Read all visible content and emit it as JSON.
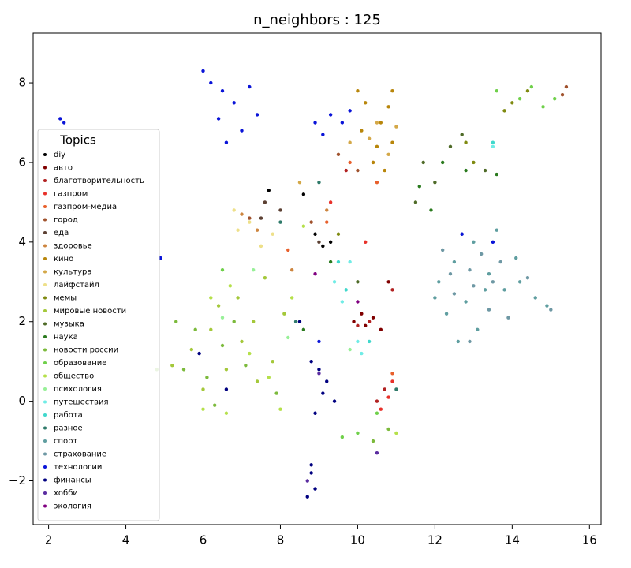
{
  "chart_data": {
    "type": "scatter",
    "title": "n_neighbors : 125",
    "legend_title": "Topics",
    "legend": "lower left",
    "xlim": [
      1.6,
      16.3
    ],
    "ylim": [
      -3.1,
      9.25
    ],
    "xticks": [
      2,
      4,
      6,
      8,
      10,
      12,
      14,
      16
    ],
    "yticks": [
      {
        "value": -2,
        "label": "−2"
      },
      0,
      2,
      4,
      6,
      8
    ],
    "series": [
      {
        "name": "diy",
        "color": "#000000",
        "x": [
          8.9,
          9.1,
          8.6,
          9.3,
          7.7
        ],
        "values": [
          4.2,
          3.9,
          5.2,
          4.0,
          5.3
        ]
      },
      {
        "name": "авто",
        "color": "#800000",
        "x": [
          10.2,
          10.4,
          9.9,
          10.1,
          10.6,
          10.8
        ],
        "values": [
          1.9,
          2.1,
          2.0,
          2.2,
          1.8,
          3.0
        ]
      },
      {
        "name": "благотворительность",
        "color": "#b22222",
        "x": [
          10.0,
          10.3,
          10.5,
          10.7,
          9.7,
          10.9
        ],
        "values": [
          1.9,
          2.0,
          0.0,
          0.3,
          5.8,
          2.8
        ]
      },
      {
        "name": "газпром",
        "color": "#e8312a",
        "x": [
          10.8,
          10.6,
          10.9,
          9.3,
          10.2
        ],
        "values": [
          0.1,
          -0.2,
          0.5,
          5.0,
          4.0
        ]
      },
      {
        "name": "газпром-медиа",
        "color": "#e8602c",
        "x": [
          9.8,
          10.5,
          9.2,
          8.2,
          10.9
        ],
        "values": [
          6.0,
          5.5,
          4.5,
          3.8,
          0.7
        ]
      },
      {
        "name": "город",
        "color": "#a0522d",
        "x": [
          9.5,
          10.0,
          8.8,
          7.2,
          15.4,
          15.3
        ],
        "values": [
          6.2,
          5.8,
          4.5,
          4.6,
          7.9,
          7.7
        ]
      },
      {
        "name": "еда",
        "color": "#5c4033",
        "x": [
          7.6,
          8.0,
          9.0,
          7.5
        ],
        "values": [
          5.0,
          4.8,
          4.0,
          4.6
        ]
      },
      {
        "name": "здоровье",
        "color": "#cd853f",
        "x": [
          7.0,
          7.4,
          8.3,
          9.2,
          10.4
        ],
        "values": [
          4.7,
          4.3,
          3.3,
          4.8,
          6.0
        ]
      },
      {
        "name": "кино",
        "color": "#b8860b",
        "x": [
          10.2,
          10.6,
          10.9,
          10.4,
          10.8,
          10.1,
          10.7,
          10.0,
          10.9,
          10.5
        ],
        "values": [
          7.5,
          7.0,
          6.5,
          6.0,
          7.4,
          6.8,
          5.8,
          7.8,
          7.8,
          6.4
        ]
      },
      {
        "name": "культура",
        "color": "#d4a848",
        "x": [
          10.5,
          10.8,
          10.3,
          9.8,
          11.0,
          8.5
        ],
        "values": [
          7.0,
          6.2,
          6.6,
          6.5,
          6.9,
          5.5
        ]
      },
      {
        "name": "лайфстайл",
        "color": "#eee08a",
        "x": [
          6.8,
          7.2,
          7.8,
          6.9,
          7.5
        ],
        "values": [
          4.8,
          4.5,
          4.2,
          4.3,
          3.9
        ]
      },
      {
        "name": "мемы",
        "color": "#7f8a10",
        "x": [
          14.0,
          13.8,
          14.4,
          12.8,
          13.0,
          9.5
        ],
        "values": [
          7.5,
          7.3,
          7.8,
          6.5,
          6.0,
          4.2
        ]
      },
      {
        "name": "мировые новости",
        "color": "#a4c83a",
        "x": [
          5.7,
          6.2,
          6.6,
          7.0,
          7.4,
          6.9,
          7.8,
          6.0,
          5.2,
          7.3,
          8.1,
          6.4,
          7.6
        ],
        "values": [
          1.3,
          1.8,
          0.8,
          1.5,
          0.5,
          2.6,
          1.0,
          0.3,
          0.9,
          2.0,
          2.2,
          2.4,
          3.1
        ]
      },
      {
        "name": "музыка",
        "color": "#4f6b28",
        "x": [
          11.7,
          12.0,
          12.4,
          11.5,
          12.7,
          13.3,
          10.0
        ],
        "values": [
          6.0,
          5.5,
          6.4,
          5.0,
          6.7,
          5.8,
          3.0
        ]
      },
      {
        "name": "наука",
        "color": "#2a7a1e",
        "x": [
          11.6,
          12.2,
          11.9,
          12.8,
          13.6,
          9.3,
          8.6
        ],
        "values": [
          5.4,
          6.0,
          4.8,
          5.8,
          5.7,
          3.5,
          1.8
        ]
      },
      {
        "name": "новости россии",
        "color": "#7cba3c",
        "x": [
          5.5,
          6.1,
          6.5,
          5.8,
          7.1,
          6.3,
          4.8,
          5.3,
          6.8,
          7.9,
          10.4,
          10.8
        ],
        "values": [
          0.8,
          0.6,
          1.4,
          1.8,
          0.9,
          -0.1,
          0.8,
          2.0,
          2.0,
          0.2,
          -1.0,
          -0.7
        ]
      },
      {
        "name": "образование",
        "color": "#6fd04a",
        "x": [
          14.2,
          14.5,
          13.6,
          14.8,
          15.1,
          10.0,
          10.5,
          9.6,
          6.5
        ],
        "values": [
          7.6,
          7.9,
          7.8,
          7.4,
          7.6,
          -0.8,
          -0.3,
          -0.9,
          3.3
        ]
      },
      {
        "name": "общество",
        "color": "#b5e04a",
        "x": [
          6.2,
          6.7,
          7.2,
          7.7,
          8.3,
          6.0,
          6.6,
          8.0,
          8.6,
          11.0
        ],
        "values": [
          2.6,
          2.9,
          1.2,
          0.6,
          2.6,
          -0.2,
          -0.3,
          -0.2,
          4.4,
          -0.8
        ]
      },
      {
        "name": "психология",
        "color": "#98f098",
        "x": [
          7.3,
          8.2,
          9.8,
          6.5
        ],
        "values": [
          3.3,
          1.6,
          1.3,
          2.1
        ]
      },
      {
        "name": "путешествия",
        "color": "#70ece6",
        "x": [
          9.6,
          10.0,
          9.4,
          9.8,
          10.1,
          13.5
        ],
        "values": [
          2.5,
          1.5,
          3.0,
          3.5,
          1.2,
          6.4
        ]
      },
      {
        "name": "работа",
        "color": "#40d8cc",
        "x": [
          9.7,
          10.3,
          9.5,
          13.5
        ],
        "values": [
          2.8,
          1.5,
          3.5,
          6.5
        ]
      },
      {
        "name": "разное",
        "color": "#2f7a6a",
        "x": [
          8.0,
          9.0,
          8.4,
          11.0
        ],
        "values": [
          4.5,
          5.5,
          2.0,
          0.3
        ]
      },
      {
        "name": "спорт",
        "color": "#5f9ea0",
        "x": [
          12.1,
          12.5,
          13.0,
          13.4,
          12.8,
          13.8,
          14.2,
          12.3,
          13.1,
          12.6,
          13.6,
          14.6,
          14.9,
          12.0,
          13.3,
          14.1
        ],
        "values": [
          3.0,
          3.5,
          4.0,
          3.2,
          2.5,
          2.8,
          3.0,
          2.2,
          1.8,
          1.5,
          4.3,
          2.6,
          2.4,
          2.6,
          2.8,
          3.6
        ]
      },
      {
        "name": "страхование",
        "color": "#6e98a4",
        "x": [
          12.4,
          12.9,
          13.2,
          13.7,
          12.2,
          12.7,
          13.4,
          13.9,
          12.5,
          14.4,
          13.0,
          13.5,
          12.9,
          15.0
        ],
        "values": [
          3.2,
          3.3,
          3.7,
          3.5,
          3.8,
          4.2,
          2.3,
          2.1,
          2.7,
          3.1,
          2.9,
          3.0,
          1.5,
          2.3
        ]
      },
      {
        "name": "технологии",
        "color": "#0a14d8",
        "x": [
          6.0,
          6.2,
          6.5,
          6.8,
          7.2,
          7.4,
          6.6,
          7.0,
          6.4,
          8.9,
          9.3,
          9.6,
          9.1,
          9.8,
          2.3,
          2.4,
          4.9,
          12.7,
          13.5,
          9.0
        ],
        "values": [
          8.3,
          8.0,
          7.8,
          7.5,
          7.9,
          7.2,
          6.5,
          6.8,
          7.1,
          7.0,
          7.2,
          7.0,
          6.7,
          7.3,
          7.1,
          7.0,
          3.6,
          4.2,
          4.0,
          1.5
        ]
      },
      {
        "name": "финансы",
        "color": "#000080",
        "x": [
          9.0,
          9.1,
          8.9,
          9.2,
          8.8,
          8.8,
          8.9,
          8.7,
          8.8,
          5.9,
          6.6,
          8.5,
          9.4
        ],
        "values": [
          0.8,
          0.2,
          -0.3,
          0.5,
          1.0,
          -1.8,
          -2.2,
          -2.4,
          -1.6,
          1.2,
          0.3,
          2.0,
          0.0
        ]
      },
      {
        "name": "хобби",
        "color": "#5a2ca0",
        "x": [
          9.0,
          8.7,
          10.5
        ],
        "values": [
          0.7,
          -2.0,
          -1.3
        ]
      },
      {
        "name": "экология",
        "color": "#800080",
        "x": [
          8.9,
          10.0
        ],
        "values": [
          3.2,
          2.5
        ]
      }
    ]
  }
}
